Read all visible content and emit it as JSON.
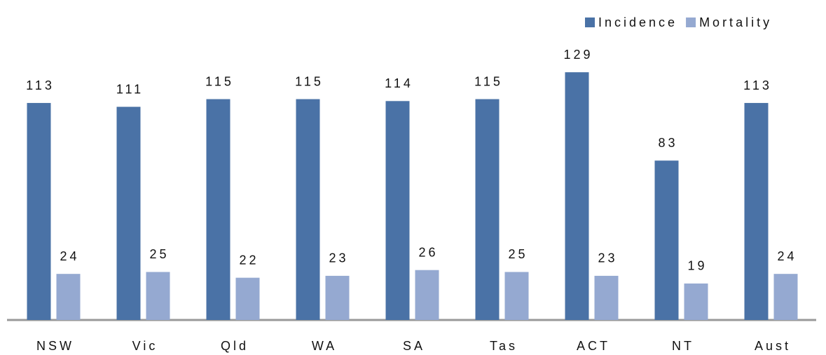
{
  "chart_data": {
    "type": "bar",
    "categories": [
      "NSW",
      "Vic",
      "Qld",
      "WA",
      "SA",
      "Tas",
      "ACT",
      "NT",
      "Aust"
    ],
    "series": [
      {
        "name": "Incidence",
        "color": "#4a72a6",
        "values": [
          113,
          111,
          115,
          115,
          114,
          115,
          129,
          83,
          113
        ]
      },
      {
        "name": "Mortality",
        "color": "#95a9d1",
        "values": [
          24,
          25,
          22,
          23,
          26,
          25,
          23,
          19,
          24
        ]
      }
    ],
    "ylim": [
      0,
      140
    ],
    "legend": "top-right"
  }
}
